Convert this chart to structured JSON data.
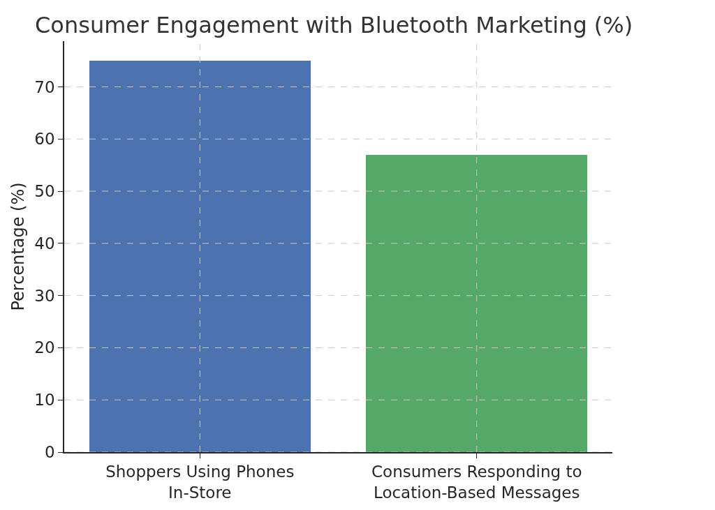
{
  "chart_data": {
    "type": "bar",
    "title": "Consumer Engagement with Bluetooth Marketing (%)",
    "ylabel": "Percentage (%)",
    "categories": [
      "Shoppers Using Phones In-Store",
      "Consumers Responding to Location-Based Messages"
    ],
    "values": [
      75,
      57
    ],
    "colors": [
      "#4c72b0",
      "#55a868"
    ],
    "ylim": [
      0,
      78.75
    ],
    "yticks": [
      0,
      10,
      20,
      30,
      40,
      50,
      60,
      70
    ],
    "grid": true
  }
}
